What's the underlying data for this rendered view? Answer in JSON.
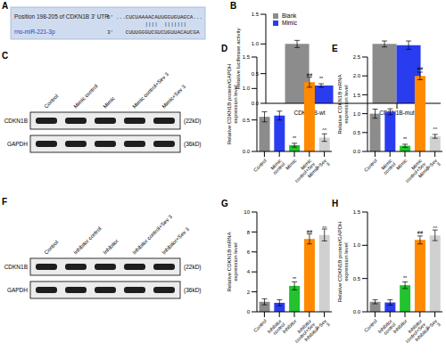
{
  "alignment": {
    "label": "A",
    "header": "Position 198-205 of CDKN1B 3' UTR",
    "target": {
      "end": "5'",
      "sequence": "...CUCUAAAACAUUGGUGUAGCA..."
    },
    "pairing": "||||  |||||||",
    "mirna": {
      "name": "rno-miR-221-3p",
      "end": "3'",
      "sequence": "CUUUGGGUCGUCUGUUACAUCGA"
    }
  },
  "blots": [
    {
      "label": "C",
      "lanes": [
        "Control",
        "Mimic control",
        "Mimic",
        "Mimic control+Sev 3",
        "Mimic+Sev 3"
      ],
      "rows": [
        {
          "protein": "CDKN1B",
          "size": "(22kD)"
        },
        {
          "protein": "GAPDH",
          "size": "(36kD)"
        }
      ]
    },
    {
      "label": "F",
      "lanes": [
        "Control",
        "Inhibitor control",
        "Inhibitor",
        "Inhibitor control+Sev 3",
        "Inhibitor+Sev 3"
      ],
      "rows": [
        {
          "protein": "CDKN1B",
          "size": "(22kD)"
        },
        {
          "protein": "GAPDH",
          "size": "(36kD)"
        }
      ]
    }
  ],
  "chart_data": [
    {
      "label": "B",
      "type": "bar",
      "y_label": "Relative luciferase activity",
      "categories": [
        "CDKN1B-wt",
        "CDKN1B-mut"
      ],
      "series": [
        {
          "name": "Blank",
          "color": "#8c8c8c",
          "values": [
            1.0,
            1.0
          ],
          "errors": [
            0.06,
            0.05
          ]
        },
        {
          "name": "Mimic",
          "color": "#2a3cf0",
          "values": [
            0.3,
            0.98
          ],
          "errors": [
            0.03,
            0.07
          ],
          "annotations": [
            "**",
            null
          ]
        }
      ],
      "ylim": [
        0,
        1.5
      ],
      "yticks": [
        {
          "value": 0,
          "label": "0.0"
        },
        0.5,
        {
          "value": 1,
          "label": "1.0"
        },
        1.5
      ],
      "legend": "upper left"
    },
    {
      "label": "D",
      "type": "bar",
      "y_label": "Relative CDKN1B protein/GAPDH expression level",
      "categories": [
        "Control",
        "Mimic control",
        "Mimic",
        "Mimic control+Sev 3",
        "Mimic+Sev 3"
      ],
      "values": [
        0.55,
        0.57,
        0.1,
        1.1,
        0.22
      ],
      "errors": [
        0.08,
        0.07,
        0.03,
        0.08,
        0.06
      ],
      "annotations": [
        null,
        null,
        "**",
        "##",
        "^^"
      ],
      "colors": [
        "#8c8c8c",
        "#2a3cf0",
        "#22c32e",
        "#ff8a00",
        "#d0d0d0"
      ],
      "ylim": [
        0,
        1.5
      ],
      "yticks": [
        {
          "value": 0,
          "label": "0.0"
        },
        0.5,
        {
          "value": 1,
          "label": "1.0"
        },
        1.5
      ]
    },
    {
      "label": "E",
      "type": "bar",
      "y_label": "Relative CDKN1B mRNA expression level",
      "categories": [
        "Control",
        "Mimic control",
        "Mimic",
        "Mimic control+Sev 3",
        "Mimic+Sev 3"
      ],
      "values": [
        1.0,
        1.05,
        0.15,
        2.0,
        0.4
      ],
      "errors": [
        0.12,
        0.08,
        0.04,
        0.1,
        0.05
      ],
      "annotations": [
        null,
        null,
        "**",
        "##",
        "^^"
      ],
      "colors": [
        "#8c8c8c",
        "#2a3cf0",
        "#22c32e",
        "#ff8a00",
        "#d0d0d0"
      ],
      "ylim": [
        0,
        2.5
      ],
      "yticks": [
        {
          "value": 0,
          "label": "0.0"
        },
        0.5,
        {
          "value": 1,
          "label": "1.0"
        },
        1.5,
        {
          "value": 2,
          "label": "2.0"
        },
        2.5
      ]
    },
    {
      "label": "G",
      "type": "bar",
      "y_label": "Relative CDKN1B mRNA expression level",
      "categories": [
        "Control",
        "Inhibitor control",
        "Inhibitor",
        "Inhibitor control+Sev 3",
        "Inhibitor+Sev 3"
      ],
      "values": [
        1.0,
        0.9,
        2.6,
        7.3,
        7.7
      ],
      "errors": [
        0.3,
        0.3,
        0.4,
        0.5,
        0.6
      ],
      "annotations": [
        null,
        null,
        "**",
        "##",
        "^^"
      ],
      "colors": [
        "#8c8c8c",
        "#2a3cf0",
        "#22c32e",
        "#ff8a00",
        "#d0d0d0"
      ],
      "ylim": [
        0,
        10
      ],
      "yticks": [
        0,
        2,
        4,
        6,
        8,
        10
      ]
    },
    {
      "label": "H",
      "type": "bar",
      "y_label": "Relative CDKN1B protein/GAPDH expression level",
      "categories": [
        "Control",
        "Inhibitor control",
        "Inhibitor",
        "Inhibitor control+Sev 3",
        "Inhibitor+Sev 3"
      ],
      "values": [
        0.15,
        0.14,
        0.4,
        1.08,
        1.15
      ],
      "errors": [
        0.03,
        0.04,
        0.05,
        0.06,
        0.08
      ],
      "annotations": [
        null,
        null,
        "**",
        "##",
        "^^"
      ],
      "colors": [
        "#8c8c8c",
        "#2a3cf0",
        "#22c32e",
        "#ff8a00",
        "#d0d0d0"
      ],
      "ylim": [
        0,
        1.5
      ],
      "yticks": [
        {
          "value": 0,
          "label": "0.0"
        },
        0.5,
        {
          "value": 1,
          "label": "1.0"
        },
        1.5
      ]
    }
  ]
}
